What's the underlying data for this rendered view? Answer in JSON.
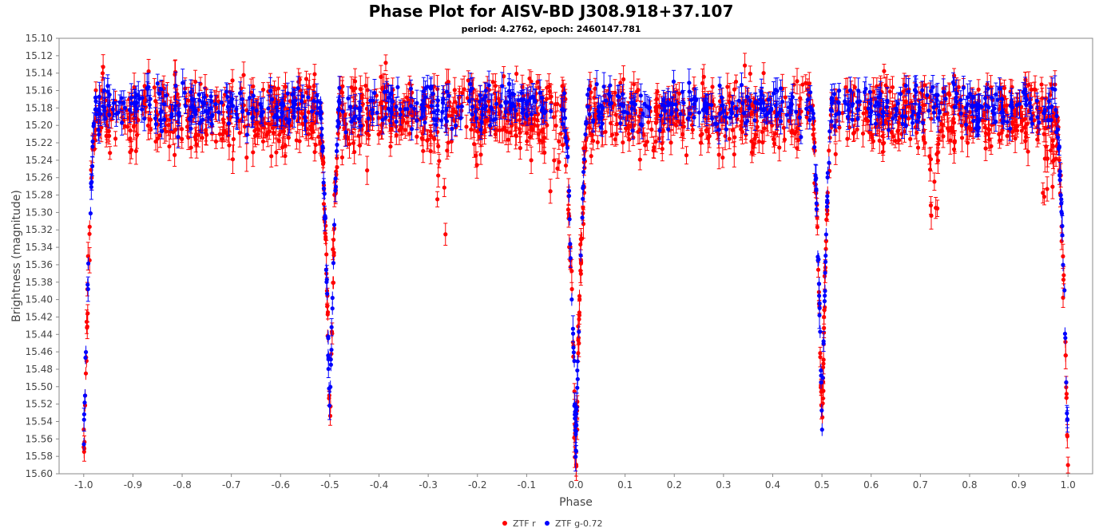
{
  "chart_data": {
    "type": "scatter",
    "title": "Phase Plot for AISV-BD J308.918+37.107",
    "subtitle": "period: 4.2762, epoch: 2460147.781",
    "xlabel": "Phase",
    "ylabel": "Brightness (magnitude)",
    "xlim": [
      -1.05,
      1.05
    ],
    "ylim": [
      15.1,
      15.6
    ],
    "y_inverted": true,
    "x_ticks": [
      "-1.0",
      "-0.9",
      "-0.8",
      "-0.7",
      "-0.6",
      "-0.5",
      "-0.4",
      "-0.3",
      "-0.2",
      "-0.1",
      "0.0",
      "0.1",
      "0.2",
      "0.3",
      "0.4",
      "0.5",
      "0.6",
      "0.7",
      "0.8",
      "0.9",
      "1.0"
    ],
    "y_ticks": [
      "15.10",
      "15.12",
      "15.14",
      "15.16",
      "15.18",
      "15.20",
      "15.22",
      "15.24",
      "15.26",
      "15.28",
      "15.30",
      "15.32",
      "15.34",
      "15.36",
      "15.38",
      "15.40",
      "15.42",
      "15.44",
      "15.46",
      "15.48",
      "15.50",
      "15.52",
      "15.54",
      "15.56",
      "15.58",
      "15.60"
    ],
    "grid": false,
    "legend_position": "bottom-center",
    "series": [
      {
        "name": "ZTF r",
        "color": "#ff0000",
        "light_curve": {
          "baseline_mag": 15.19,
          "scatter_mag": 0.035,
          "primary_eclipse": {
            "phase": 0.0,
            "depth_mag": 15.58,
            "half_width": 0.025
          },
          "secondary_eclipse": {
            "phase": 0.5,
            "depth_mag": 15.55,
            "half_width": 0.02
          },
          "dense_columns": [
            -0.275,
            -0.04,
            0.725,
            0.96
          ]
        }
      },
      {
        "name": "ZTF g-0.72",
        "color": "#0000ff",
        "light_curve": {
          "baseline_mag": 15.18,
          "scatter_mag": 0.02,
          "primary_eclipse": {
            "phase": 0.0,
            "depth_mag": 15.57,
            "half_width": 0.025
          },
          "secondary_eclipse": {
            "phase": 0.5,
            "depth_mag": 15.54,
            "half_width": 0.02
          },
          "dense_columns": []
        }
      }
    ]
  }
}
